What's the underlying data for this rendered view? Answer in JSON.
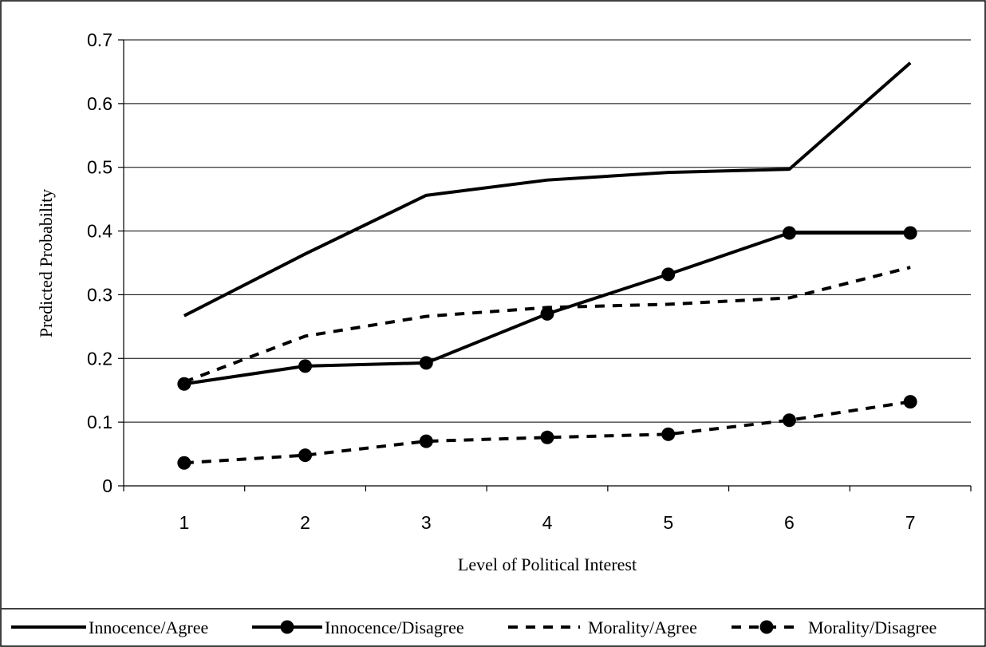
{
  "chart_data": {
    "type": "line",
    "title": "",
    "xlabel": "Level of Political Interest",
    "ylabel": "Predicted Probability",
    "categories": [
      "1",
      "2",
      "3",
      "4",
      "5",
      "6",
      "7"
    ],
    "y_ticks": [
      "0",
      "0.1",
      "0.2",
      "0.3",
      "0.4",
      "0.5",
      "0.6",
      "0.7"
    ],
    "ylim": [
      0,
      0.7
    ],
    "grid": true,
    "legend_position": "bottom",
    "series": [
      {
        "name": "Innocence/Agree",
        "style": "solid",
        "marker": "none",
        "color": "#000000",
        "values": [
          0.267,
          0.364,
          0.456,
          0.48,
          0.492,
          0.497,
          0.664
        ]
      },
      {
        "name": "Innocence/Disagree",
        "style": "solid",
        "marker": "circle",
        "color": "#000000",
        "values": [
          0.16,
          0.188,
          0.193,
          0.27,
          0.332,
          0.397,
          0.397
        ]
      },
      {
        "name": "Morality/Agree",
        "style": "dashed",
        "marker": "none",
        "color": "#000000",
        "values": [
          0.163,
          0.235,
          0.266,
          0.28,
          0.285,
          0.295,
          0.343
        ]
      },
      {
        "name": "Morality/Disagree",
        "style": "dashed",
        "marker": "circle",
        "color": "#000000",
        "values": [
          0.036,
          0.048,
          0.07,
          0.076,
          0.081,
          0.103,
          0.132
        ]
      }
    ]
  }
}
